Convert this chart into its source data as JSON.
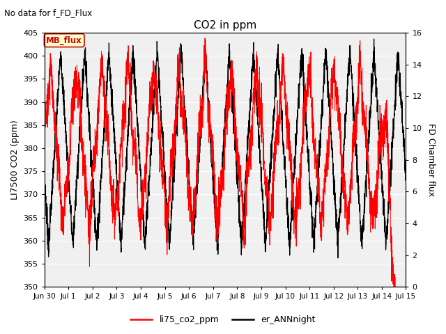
{
  "title": "CO2 in ppm",
  "subtitle": "No data for f_FD_Flux",
  "ylabel_left": "LI7500 CO2 (ppm)",
  "ylabel_right": "FD Chamber flux",
  "ylim_left": [
    350,
    405
  ],
  "ylim_right": [
    0,
    16
  ],
  "yticks_left": [
    350,
    355,
    360,
    365,
    370,
    375,
    380,
    385,
    390,
    395,
    400,
    405
  ],
  "yticks_right": [
    0,
    2,
    4,
    6,
    8,
    10,
    12,
    14,
    16
  ],
  "xtick_labels": [
    "Jun 30",
    "Jul 1",
    "Jul 2",
    "Jul 3",
    "Jul 4",
    "Jul 5",
    "Jul 6",
    "Jul 7",
    "Jul 8",
    "Jul 9",
    "Jul 10",
    "Jul 11",
    "Jul 12",
    "Jul 13",
    "Jul 14",
    "Jul 15"
  ],
  "legend_labels": [
    "li75_co2_ppm",
    "er_ANNnight"
  ],
  "legend_colors": [
    "red",
    "black"
  ],
  "line1_color": "red",
  "line2_color": "black",
  "annotation_text": "MB_flux",
  "annotation_color": "#cc0000",
  "annotation_bg": "#ffffcc",
  "annotation_border": "#cc0000",
  "plot_bg": "#f0f0f0",
  "grid_color": "#ffffff",
  "figsize": [
    6.4,
    4.8
  ],
  "dpi": 100
}
